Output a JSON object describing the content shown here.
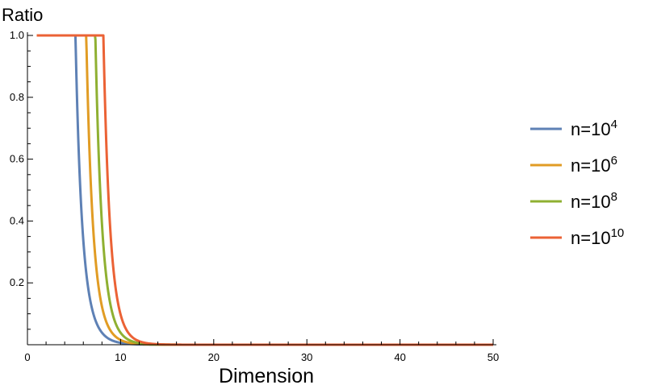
{
  "chart_data": {
    "type": "line",
    "title": "",
    "xlabel": "Dimension",
    "ylabel": "Ratio",
    "xlim": [
      0,
      50
    ],
    "ylim": [
      0,
      1.0
    ],
    "x_ticks": [
      0,
      10,
      20,
      30,
      40,
      50
    ],
    "y_ticks": [
      0.2,
      0.4,
      0.6,
      0.8,
      1.0
    ],
    "x_tick_labels": [
      "0",
      "10",
      "20",
      "30",
      "40",
      "50"
    ],
    "y_tick_labels": [
      "0.2",
      "0.4",
      "0.6",
      "0.8",
      "1.0"
    ],
    "grid": false,
    "legend_position": "right",
    "series": [
      {
        "name": "n=10^4",
        "legend_base": "n=10",
        "legend_exp": "4",
        "color": "#5e81b5",
        "n_exp": 4
      },
      {
        "name": "n=10^6",
        "legend_base": "n=10",
        "legend_exp": "6",
        "color": "#e19c24",
        "n_exp": 6
      },
      {
        "name": "n=10^8",
        "legend_base": "n=10",
        "legend_exp": "8",
        "color": "#8fb032",
        "n_exp": 8
      },
      {
        "name": "n=10^10",
        "legend_base": "n=10",
        "legend_exp": "10",
        "color": "#eb6235",
        "n_exp": 10
      }
    ]
  }
}
